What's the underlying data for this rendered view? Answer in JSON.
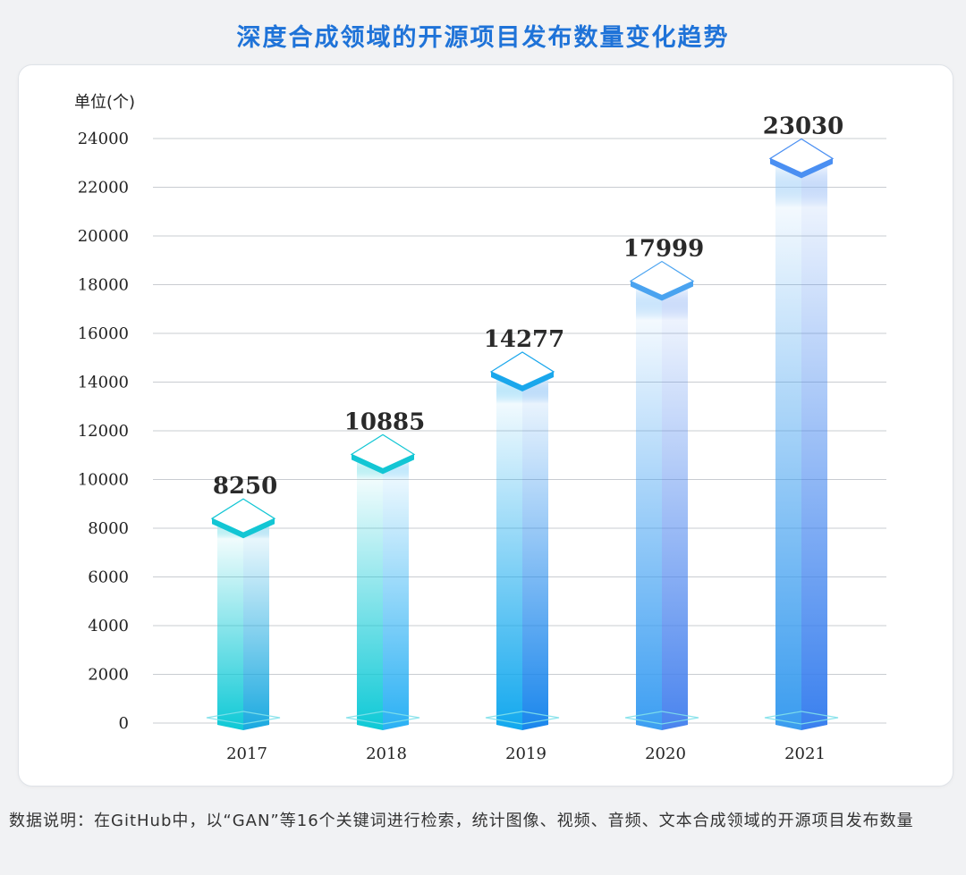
{
  "title": "深度合成领域的开源项目发布数量变化趋势",
  "footnote": "数据说明：在GitHub中，以“GAN”等16个关键词进行检索，统计图像、视频、音频、文本合成领域的开源项目发布数量",
  "chart_data": {
    "type": "bar",
    "title": "深度合成领域的开源项目发布数量变化趋势",
    "ylabel": "单位(个)",
    "xlabel": "",
    "categories": [
      "2017",
      "2018",
      "2019",
      "2020",
      "2021"
    ],
    "values": [
      8250,
      10885,
      14277,
      17999,
      23030
    ],
    "ylim": [
      0,
      24000
    ],
    "yticks": [
      0,
      2000,
      4000,
      6000,
      8000,
      10000,
      12000,
      14000,
      16000,
      18000,
      20000,
      22000,
      24000
    ],
    "grid": true,
    "colors": {
      "cap": [
        "#13c6d4",
        "#13c6d4",
        "#1aa7ec",
        "#4aa3f0",
        "#4a8ff2"
      ],
      "bottom_left": [
        "#0ec9d6",
        "#0ec9d6",
        "#12a8ee",
        "#3c9ef2",
        "#3a9cef"
      ],
      "bottom_right": [
        "#1aa9e0",
        "#2ab0f4",
        "#1a86ec",
        "#4a84ee",
        "#3a80ee"
      ]
    }
  }
}
